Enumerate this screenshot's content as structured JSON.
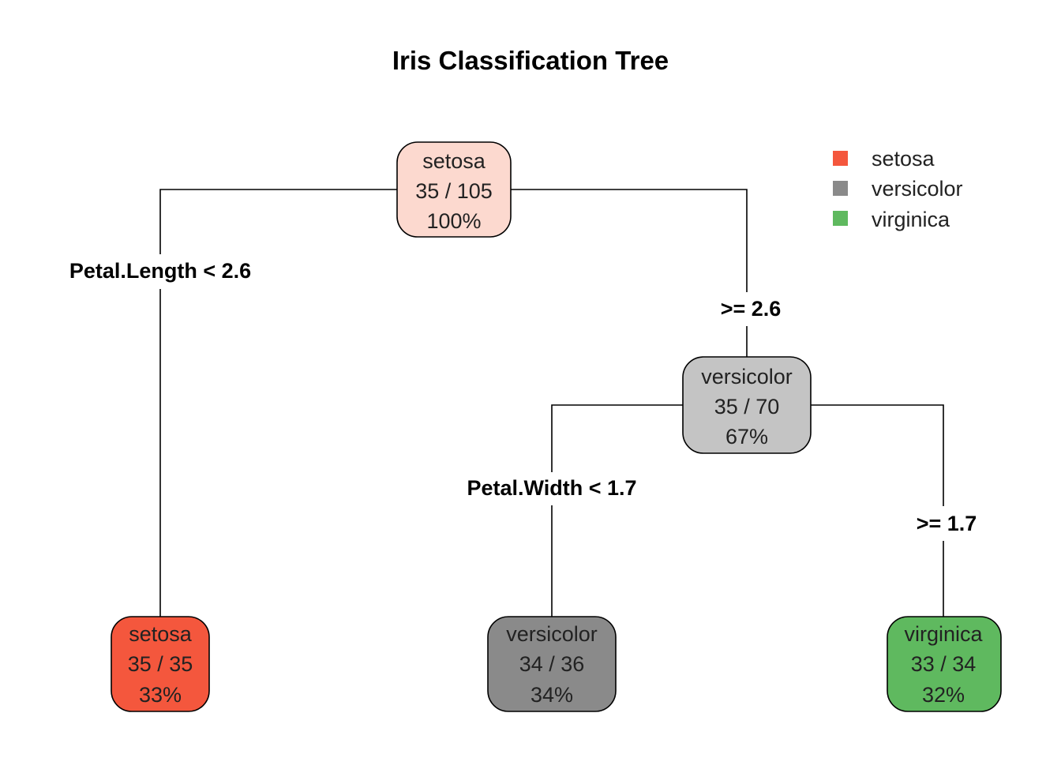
{
  "title": "Iris Classification Tree",
  "legend": [
    {
      "label": "setosa",
      "color": "#F4573D"
    },
    {
      "label": "versicolor",
      "color": "#8A8A8A"
    },
    {
      "label": "virginica",
      "color": "#5FB95F"
    }
  ],
  "nodes": {
    "root": {
      "class": "setosa",
      "counts": "35 / 105",
      "percent": "100%",
      "fill": "#FCD9CF"
    },
    "inner": {
      "class": "versicolor",
      "counts": "35 / 70",
      "percent": "67%",
      "fill": "#C4C4C4"
    },
    "leaf_setosa": {
      "class": "setosa",
      "counts": "35 / 35",
      "percent": "33%",
      "fill": "#F4573D"
    },
    "leaf_versicolor": {
      "class": "versicolor",
      "counts": "34 / 36",
      "percent": "34%",
      "fill": "#8A8A8A"
    },
    "leaf_virginica": {
      "class": "virginica",
      "counts": "33 / 34",
      "percent": "32%",
      "fill": "#5FB95F"
    }
  },
  "splits": {
    "root_left": "Petal.Length < 2.6",
    "root_right": ">= 2.6",
    "inner_left": "Petal.Width < 1.7",
    "inner_right": ">= 1.7"
  }
}
